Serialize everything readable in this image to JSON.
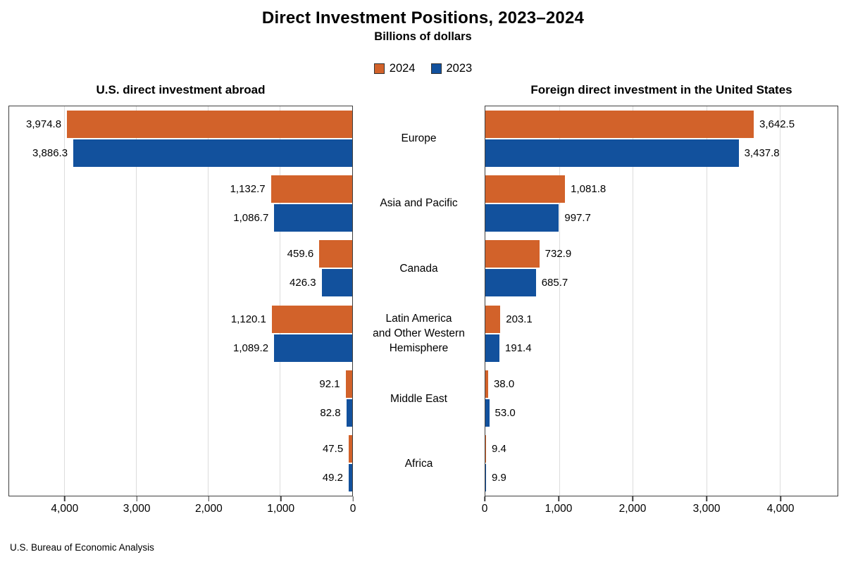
{
  "title": "Direct Investment Positions, 2023–2024",
  "subtitle": "Billions of dollars",
  "source": "U.S. Bureau of Economic Analysis",
  "legend": [
    {
      "label": "2024",
      "color": "#D2622A"
    },
    {
      "label": "2023",
      "color": "#12519D"
    }
  ],
  "chart_data": {
    "type": "bar",
    "variant": "diverging-horizontal-paired",
    "unit": "billions of dollars",
    "grid": true,
    "x_max": 4780,
    "x_ticks": [
      0,
      1000,
      2000,
      3000,
      4000
    ],
    "categories": [
      "Europe",
      "Asia and Pacific",
      "Canada",
      "Latin America and Other Western Hemisphere",
      "Middle East",
      "Africa"
    ],
    "category_lines": [
      [
        "Europe"
      ],
      [
        "Asia and Pacific"
      ],
      [
        "Canada"
      ],
      [
        "Latin America",
        "and Other Western",
        "Hemisphere"
      ],
      [
        "Middle East"
      ],
      [
        "Africa"
      ]
    ],
    "panels": [
      {
        "title": "U.S. direct investment abroad",
        "direction": "left",
        "series": [
          {
            "name": "2024",
            "color": "#D2622A",
            "values": [
              3974.8,
              1132.7,
              459.6,
              1120.1,
              92.1,
              47.5
            ]
          },
          {
            "name": "2023",
            "color": "#12519D",
            "values": [
              3886.3,
              1086.7,
              426.3,
              1089.2,
              82.8,
              49.2
            ]
          }
        ]
      },
      {
        "title": "Foreign direct investment in the United States",
        "direction": "right",
        "series": [
          {
            "name": "2024",
            "color": "#D2622A",
            "values": [
              3642.5,
              1081.8,
              732.9,
              203.1,
              38.0,
              9.4
            ]
          },
          {
            "name": "2023",
            "color": "#12519D",
            "values": [
              3437.8,
              997.7,
              685.7,
              191.4,
              53.0,
              9.9
            ]
          }
        ]
      }
    ]
  }
}
